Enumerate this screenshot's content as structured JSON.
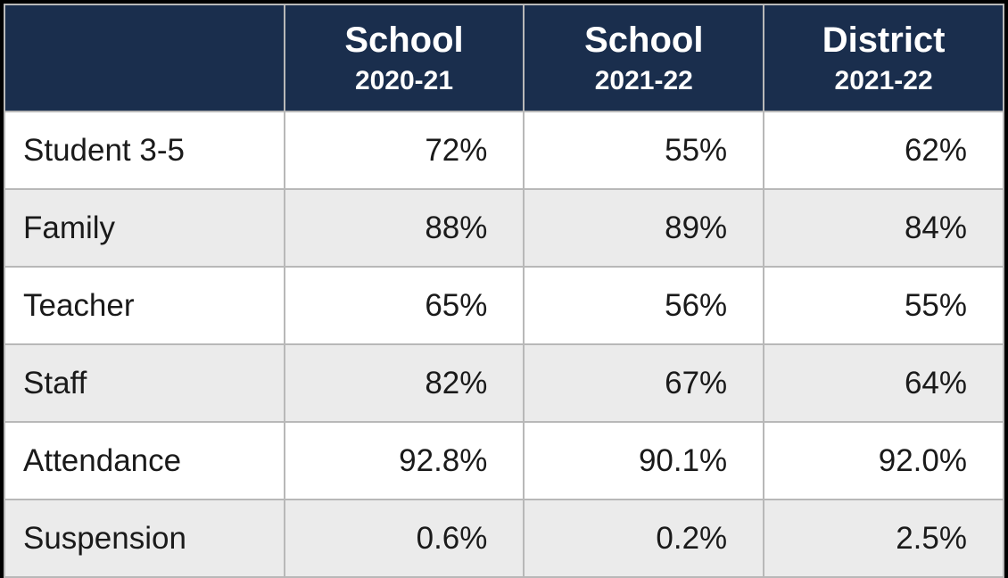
{
  "table": {
    "type": "table",
    "header_bg_color": "#1a2e4d",
    "header_text_color": "#ffffff",
    "border_color": "#b8b8b8",
    "row_bg_odd": "#ffffff",
    "row_bg_even": "#ebebeb",
    "text_color": "#1a1a1a",
    "font_family": "Arial",
    "header_main_fontsize": 40,
    "header_sub_fontsize": 30,
    "cell_fontsize": 35,
    "column_widths": [
      "28%",
      "24%",
      "24%",
      "24%"
    ],
    "columns": [
      {
        "main": "",
        "sub": ""
      },
      {
        "main": "School",
        "sub": "2020-21"
      },
      {
        "main": "School",
        "sub": "2021-22"
      },
      {
        "main": "District",
        "sub": "2021-22"
      }
    ],
    "rows": [
      {
        "label": "Student 3-5",
        "values": [
          "72%",
          "55%",
          "62%"
        ]
      },
      {
        "label": "Family",
        "values": [
          "88%",
          "89%",
          "84%"
        ]
      },
      {
        "label": "Teacher",
        "values": [
          "65%",
          "56%",
          "55%"
        ]
      },
      {
        "label": "Staff",
        "values": [
          "82%",
          "67%",
          "64%"
        ]
      },
      {
        "label": "Attendance",
        "values": [
          "92.8%",
          "90.1%",
          "92.0%"
        ]
      },
      {
        "label": "Suspension",
        "values": [
          "0.6%",
          "0.2%",
          "2.5%"
        ]
      }
    ]
  }
}
